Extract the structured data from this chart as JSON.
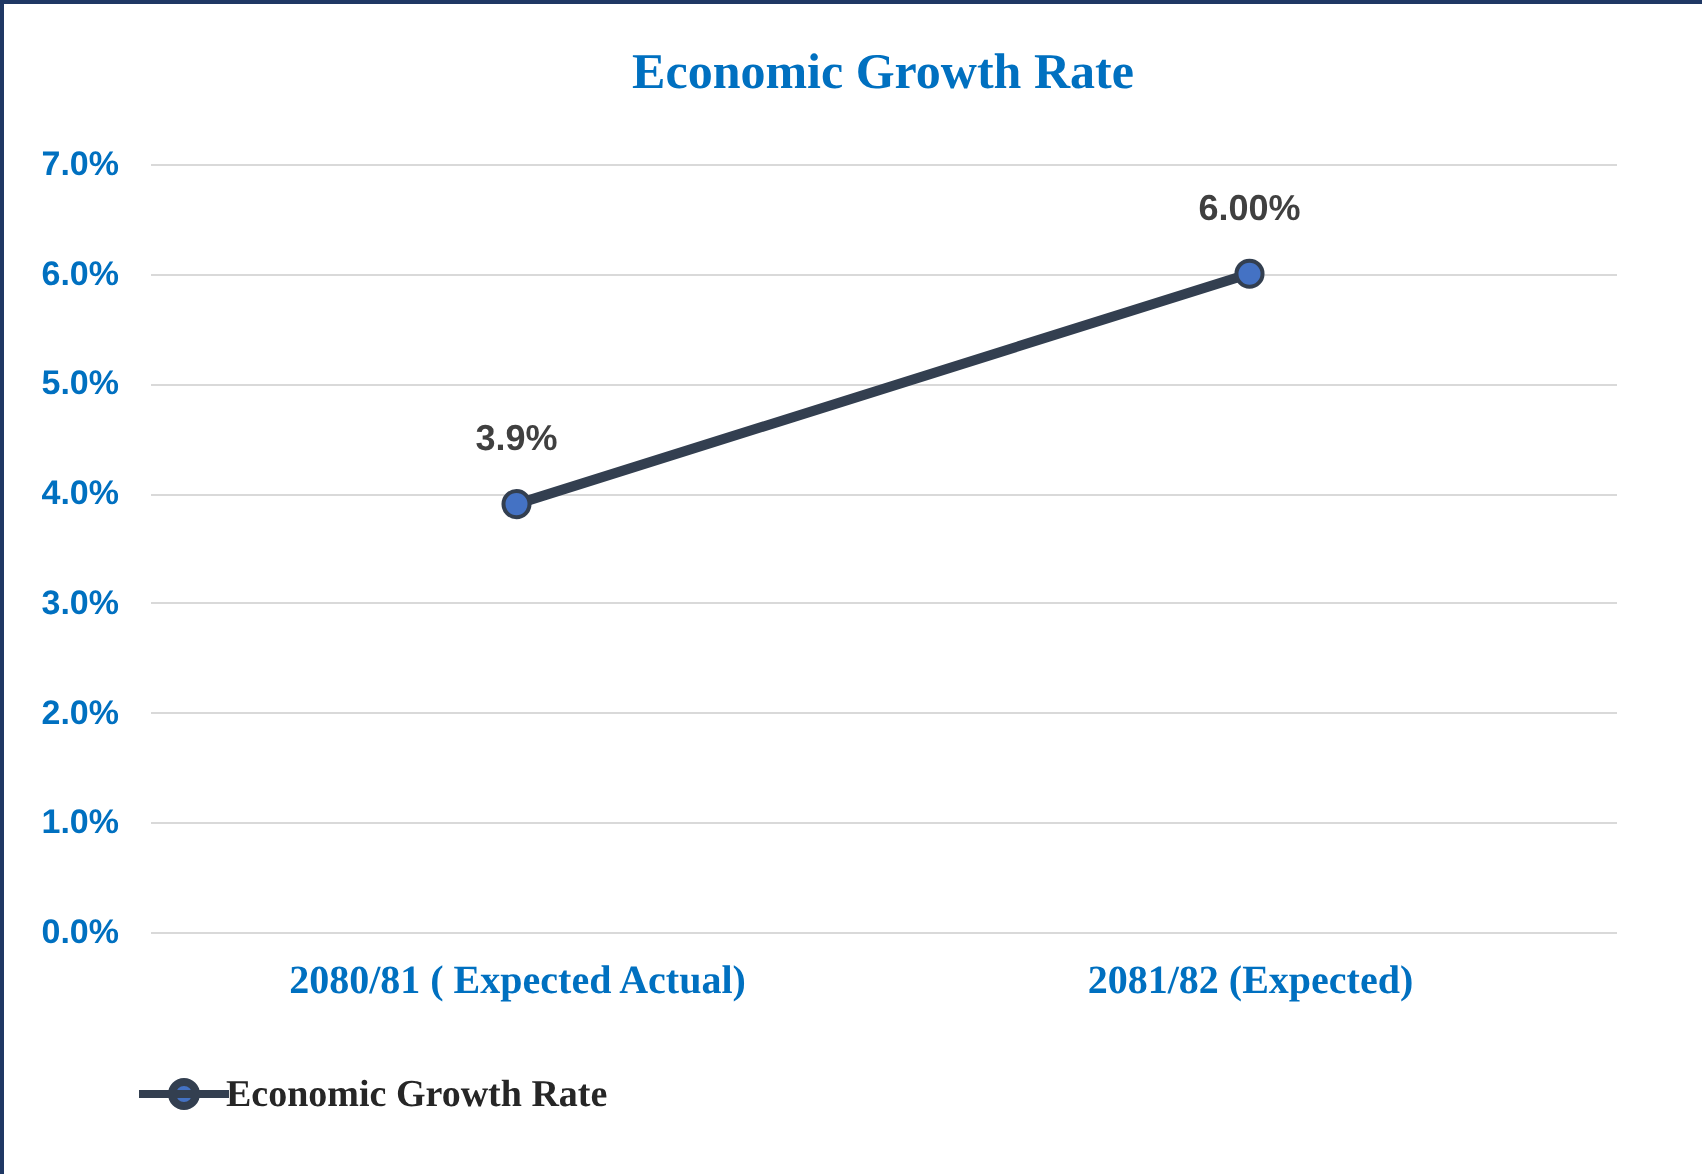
{
  "chart_data": {
    "type": "line",
    "title": "Economic Growth Rate",
    "categories": [
      "2080/81 ( Expected Actual)",
      "2081/82 (Expected)"
    ],
    "series": [
      {
        "name": "Economic Growth Rate",
        "color": "#333f50",
        "values": [
          3.9,
          6.0
        ],
        "value_labels": [
          "3.9%",
          "6.00%"
        ]
      }
    ],
    "ylim": [
      0,
      7
    ],
    "yticks": [
      {
        "value": 0,
        "label": "0.0%"
      },
      {
        "value": 1,
        "label": "1.0%"
      },
      {
        "value": 2,
        "label": "2.0%"
      },
      {
        "value": 3,
        "label": "3.0%"
      },
      {
        "value": 4,
        "label": "4.0%"
      },
      {
        "value": 5,
        "label": "5.0%"
      },
      {
        "value": 6,
        "label": "6.0%"
      },
      {
        "value": 7,
        "label": "7.0%"
      }
    ],
    "grid": "y",
    "legend": "bottom",
    "marker": "circle",
    "line_style": "solid"
  }
}
